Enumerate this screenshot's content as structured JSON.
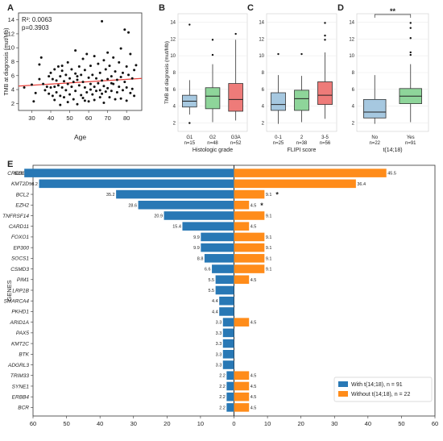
{
  "chart_data": [
    {
      "panel": "A",
      "type": "scatter",
      "xlabel": "Age",
      "ylabel": "TMB at diagnosis (mut/Mb)",
      "xlim": [
        23,
        88
      ],
      "ylim": [
        1,
        15
      ],
      "xticks": [
        30,
        40,
        50,
        60,
        70,
        80
      ],
      "yticks": [
        2,
        4,
        6,
        8,
        10,
        12,
        14
      ],
      "annotation": [
        "R²: 0.0063",
        "p=0.3903"
      ],
      "regression": {
        "x": [
          23,
          88
        ],
        "y": [
          4.5,
          5.6
        ],
        "color": "#e8413b"
      },
      "points": [
        [
          26,
          4.3
        ],
        [
          30,
          4.7
        ],
        [
          31,
          2.3
        ],
        [
          32,
          3.5
        ],
        [
          34,
          7.6
        ],
        [
          34,
          5.5
        ],
        [
          35,
          8.6
        ],
        [
          36,
          4.8
        ],
        [
          37,
          3.9
        ],
        [
          38,
          4.4
        ],
        [
          39,
          5.9
        ],
        [
          39,
          3.4
        ],
        [
          40,
          6.4
        ],
        [
          40,
          4.3
        ],
        [
          41,
          5.5
        ],
        [
          41,
          3.1
        ],
        [
          42,
          6.9
        ],
        [
          42,
          4.4
        ],
        [
          42,
          2.5
        ],
        [
          43,
          5.3
        ],
        [
          43,
          3.6
        ],
        [
          44,
          7.3
        ],
        [
          44,
          4.6
        ],
        [
          45,
          5.9
        ],
        [
          45,
          3.1
        ],
        [
          45,
          1.8
        ],
        [
          46,
          6.7
        ],
        [
          46,
          4.3
        ],
        [
          47,
          5.2
        ],
        [
          47,
          2.9
        ],
        [
          48,
          6.1
        ],
        [
          48,
          3.9
        ],
        [
          49,
          7.9
        ],
        [
          49,
          4.8
        ],
        [
          49,
          2.2
        ],
        [
          50,
          5.6
        ],
        [
          50,
          3.3
        ],
        [
          51,
          6.9
        ],
        [
          51,
          4.4
        ],
        [
          52,
          5.1
        ],
        [
          52,
          2.6
        ],
        [
          53,
          9.6
        ],
        [
          53,
          6.3
        ],
        [
          53,
          3.8
        ],
        [
          54,
          5.4
        ],
        [
          54,
          1.9
        ],
        [
          55,
          7.3
        ],
        [
          55,
          4.6
        ],
        [
          56,
          3.2
        ],
        [
          56,
          6.1
        ],
        [
          57,
          8.4
        ],
        [
          57,
          5.1
        ],
        [
          57,
          2.8
        ],
        [
          58,
          4.3
        ],
        [
          58,
          6.8
        ],
        [
          59,
          3.6
        ],
        [
          59,
          9.1
        ],
        [
          60,
          5.7
        ],
        [
          60,
          2.3
        ],
        [
          61,
          4.8
        ],
        [
          61,
          7.4
        ],
        [
          62,
          3.3
        ],
        [
          62,
          6.1
        ],
        [
          63,
          8.8
        ],
        [
          63,
          4.4
        ],
        [
          63,
          2.5
        ],
        [
          64,
          5.6
        ],
        [
          64,
          3.8
        ],
        [
          65,
          7.7
        ],
        [
          65,
          4.9
        ],
        [
          66,
          2.9
        ],
        [
          66,
          6.4
        ],
        [
          67,
          13.8
        ],
        [
          67,
          5.3
        ],
        [
          67,
          3.4
        ],
        [
          68,
          8.2
        ],
        [
          68,
          4.5
        ],
        [
          68,
          2.1
        ],
        [
          69,
          6.9
        ],
        [
          69,
          3.7
        ],
        [
          70,
          9.3
        ],
        [
          70,
          5.5
        ],
        [
          70,
          4.2
        ],
        [
          71,
          7.4
        ],
        [
          71,
          2.9
        ],
        [
          72,
          5.9
        ],
        [
          72,
          3.8
        ],
        [
          73,
          8.6
        ],
        [
          73,
          4.8
        ],
        [
          74,
          6.6
        ],
        [
          74,
          2.6
        ],
        [
          75,
          5.4
        ],
        [
          75,
          3.6
        ],
        [
          76,
          7.9
        ],
        [
          76,
          4.4
        ],
        [
          77,
          9.9
        ],
        [
          77,
          5.8
        ],
        [
          77,
          2.7
        ],
        [
          78,
          6.4
        ],
        [
          78,
          3.9
        ],
        [
          79,
          12.6
        ],
        [
          79,
          5.1
        ],
        [
          80,
          7.3
        ],
        [
          80,
          4.3
        ],
        [
          80,
          2.4
        ],
        [
          81,
          12.2
        ],
        [
          81,
          6.1
        ],
        [
          82,
          9.1
        ],
        [
          82,
          3.5
        ],
        [
          83,
          5.6
        ],
        [
          83,
          4.1
        ],
        [
          84,
          6.8
        ],
        [
          84,
          3.1
        ],
        [
          85,
          7.5
        ],
        [
          61,
          4.0
        ],
        [
          54,
          5.9
        ],
        [
          46,
          7.4
        ],
        [
          72,
          4.9
        ],
        [
          66,
          3.9
        ],
        [
          58,
          2.4
        ]
      ]
    },
    {
      "panel": "B",
      "type": "box",
      "ylabel": "TMB at diagnosis (mut/Mb)",
      "xlabel": "Histologic grade",
      "ylim": [
        1,
        15
      ],
      "yticks": [
        2,
        4,
        6,
        8,
        10,
        12,
        14
      ],
      "groups": [
        {
          "label": "G1",
          "n": "n=15",
          "color": "#a6c8e0",
          "min": 3.0,
          "q1": 3.9,
          "median": 4.6,
          "q3": 5.3,
          "max": 7.1,
          "outliers": [
            2.0,
            13.7
          ]
        },
        {
          "label": "G2",
          "n": "n=48",
          "color": "#8ed59a",
          "min": 2.1,
          "q1": 3.7,
          "median": 5.2,
          "q3": 6.2,
          "max": 9.0,
          "outliers": [
            10.1,
            11.9
          ]
        },
        {
          "label": "G3A",
          "n": "n=52",
          "color": "#ee7b79",
          "min": 2.3,
          "q1": 3.4,
          "median": 4.8,
          "q3": 6.7,
          "max": 11.9,
          "outliers": [
            12.6
          ]
        }
      ]
    },
    {
      "panel": "C",
      "type": "box",
      "xlabel": "FLIPI score",
      "ylim": [
        1,
        15
      ],
      "groups": [
        {
          "label": "0-1",
          "n": "n=25",
          "color": "#a6c8e0",
          "min": 1.9,
          "q1": 3.5,
          "median": 4.2,
          "q3": 5.6,
          "max": 7.7,
          "outliers": [
            10.2
          ]
        },
        {
          "label": "2",
          "n": "n=38",
          "color": "#8ed59a",
          "min": 2.1,
          "q1": 3.5,
          "median": 4.9,
          "q3": 5.9,
          "max": 7.6,
          "outliers": [
            10.2
          ]
        },
        {
          "label": "3-5",
          "n": "n=56",
          "color": "#ee7b79",
          "min": 2.5,
          "q1": 4.2,
          "median": 5.3,
          "q3": 6.9,
          "max": 10.4,
          "outliers": [
            11.9,
            12.4,
            13.9
          ]
        }
      ]
    },
    {
      "panel": "D",
      "type": "box",
      "xlabel": "t(14;18)",
      "significance": "**",
      "ylim": [
        1,
        15
      ],
      "groups": [
        {
          "label": "No",
          "n": "n=22",
          "color": "#a6c8e0",
          "min": 1.9,
          "q1": 2.6,
          "median": 3.3,
          "q3": 4.8,
          "max": 7.7,
          "outliers": []
        },
        {
          "label": "Yes",
          "n": "n=91",
          "color": "#8ed59a",
          "min": 2.1,
          "q1": 4.3,
          "median": 5.2,
          "q3": 6.1,
          "max": 9.0,
          "outliers": [
            10.1,
            10.4,
            12.1,
            13.3,
            13.9
          ]
        }
      ]
    },
    {
      "panel": "E",
      "type": "bar",
      "orientation": "horizontal-diverging",
      "ylabel": "GENES",
      "xlim": [
        -60,
        60
      ],
      "xticks": [
        -60,
        -50,
        -40,
        -30,
        -20,
        -10,
        0,
        10,
        20,
        30,
        40,
        50,
        60
      ],
      "xtick_labels": [
        "60",
        "50",
        "40",
        "30",
        "20",
        "10",
        "0",
        "10",
        "20",
        "30",
        "40",
        "50",
        "60"
      ],
      "categories": [
        "CREBBP",
        "KMT2D",
        "BCL2",
        "EZH2",
        "TNFRSF14",
        "CARD11",
        "FOXO1",
        "EP300",
        "SOCS1",
        "CSMD3",
        "PIM1",
        "LRP1B",
        "SMARCA4",
        "PKHD1",
        "ARID1A",
        "PAX5",
        "KMT2C",
        "BTK",
        "ADGRL3",
        "TRIM33",
        "SYNE1",
        "ERBB4",
        "BCR"
      ],
      "series": [
        {
          "name": "With t(14;18), n = 91",
          "color": "#2878b5",
          "side": "left",
          "values": [
            62.6,
            58.2,
            35.2,
            28.6,
            20.9,
            15.4,
            9.9,
            9.9,
            8.8,
            6.6,
            5.5,
            5.5,
            4.4,
            4.4,
            3.3,
            3.3,
            3.3,
            3.3,
            3.3,
            2.2,
            2.2,
            2.2,
            2.2
          ]
        },
        {
          "name": "Without t(14;18), n = 22",
          "color": "#ff8c1a",
          "side": "right",
          "values": [
            45.5,
            36.4,
            9.1,
            4.5,
            9.1,
            4.5,
            9.1,
            9.1,
            9.1,
            9.1,
            4.5,
            null,
            null,
            null,
            4.5,
            null,
            null,
            null,
            null,
            4.5,
            4.5,
            4.5,
            4.5
          ]
        }
      ],
      "significance_marks": {
        "BCL2": "*",
        "EZH2": "*"
      }
    }
  ]
}
